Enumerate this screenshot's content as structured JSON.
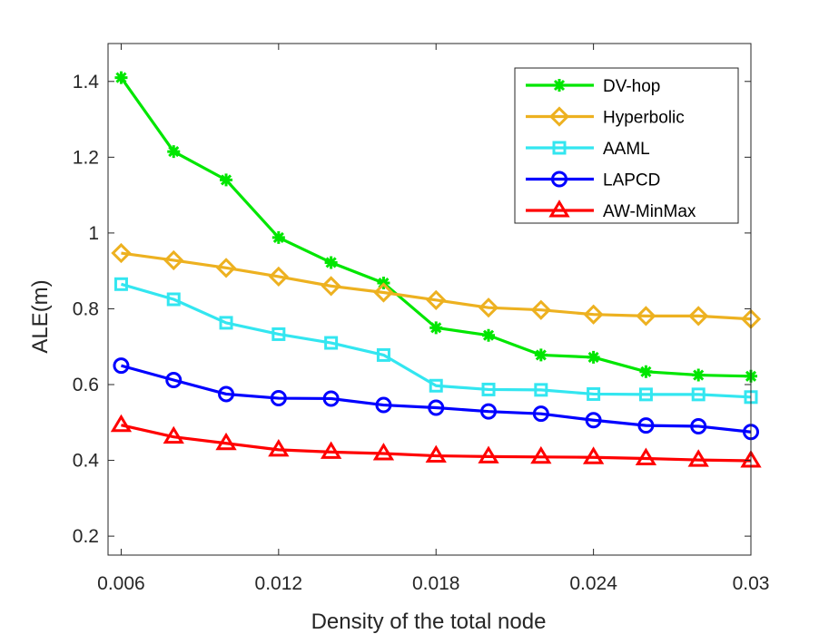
{
  "chart_data": {
    "type": "line",
    "title": "",
    "xlabel": "Density of the total node",
    "ylabel": "ALE(m)",
    "xlim": [
      0.0055,
      0.03
    ],
    "ylim": [
      0.15,
      1.5
    ],
    "xticks": [
      0.006,
      0.012,
      0.018,
      0.024,
      0.03
    ],
    "xtick_labels": [
      "0.006",
      "0.012",
      "0.018",
      "0.024",
      "0.03"
    ],
    "yticks": [
      0.2,
      0.4,
      0.6,
      0.8,
      1.0,
      1.2,
      1.4
    ],
    "ytick_labels": [
      "0.2",
      "0.4",
      "0.6",
      "0.8",
      "1",
      "1.2",
      "1.4"
    ],
    "grid": false,
    "legend_position": "top-right",
    "x": [
      0.006,
      0.008,
      0.01,
      0.012,
      0.014,
      0.016,
      0.018,
      0.02,
      0.022,
      0.024,
      0.026,
      0.028,
      0.03
    ],
    "series": [
      {
        "name": "DV-hop",
        "color": "#00e600",
        "marker": "asterisk",
        "values": [
          1.41,
          1.215,
          1.14,
          0.988,
          0.922,
          0.868,
          0.75,
          0.73,
          0.678,
          0.672,
          0.634,
          0.625,
          0.622
        ]
      },
      {
        "name": "Hyperbolic",
        "color": "#edb120",
        "marker": "diamond",
        "values": [
          0.947,
          0.928,
          0.908,
          0.885,
          0.86,
          0.843,
          0.823,
          0.803,
          0.797,
          0.785,
          0.781,
          0.781,
          0.773
        ]
      },
      {
        "name": "AAML",
        "color": "#33e6f0",
        "marker": "square",
        "values": [
          0.865,
          0.825,
          0.763,
          0.733,
          0.71,
          0.678,
          0.597,
          0.587,
          0.586,
          0.575,
          0.574,
          0.574,
          0.567
        ]
      },
      {
        "name": "LAPCD",
        "color": "#0000ff",
        "marker": "circle",
        "values": [
          0.65,
          0.612,
          0.575,
          0.564,
          0.563,
          0.546,
          0.539,
          0.529,
          0.523,
          0.506,
          0.492,
          0.49,
          0.475
        ]
      },
      {
        "name": "AW-MinMax",
        "color": "#ff0000",
        "marker": "triangle",
        "values": [
          0.493,
          0.462,
          0.445,
          0.428,
          0.422,
          0.418,
          0.412,
          0.41,
          0.409,
          0.408,
          0.405,
          0.401,
          0.399
        ]
      }
    ]
  }
}
